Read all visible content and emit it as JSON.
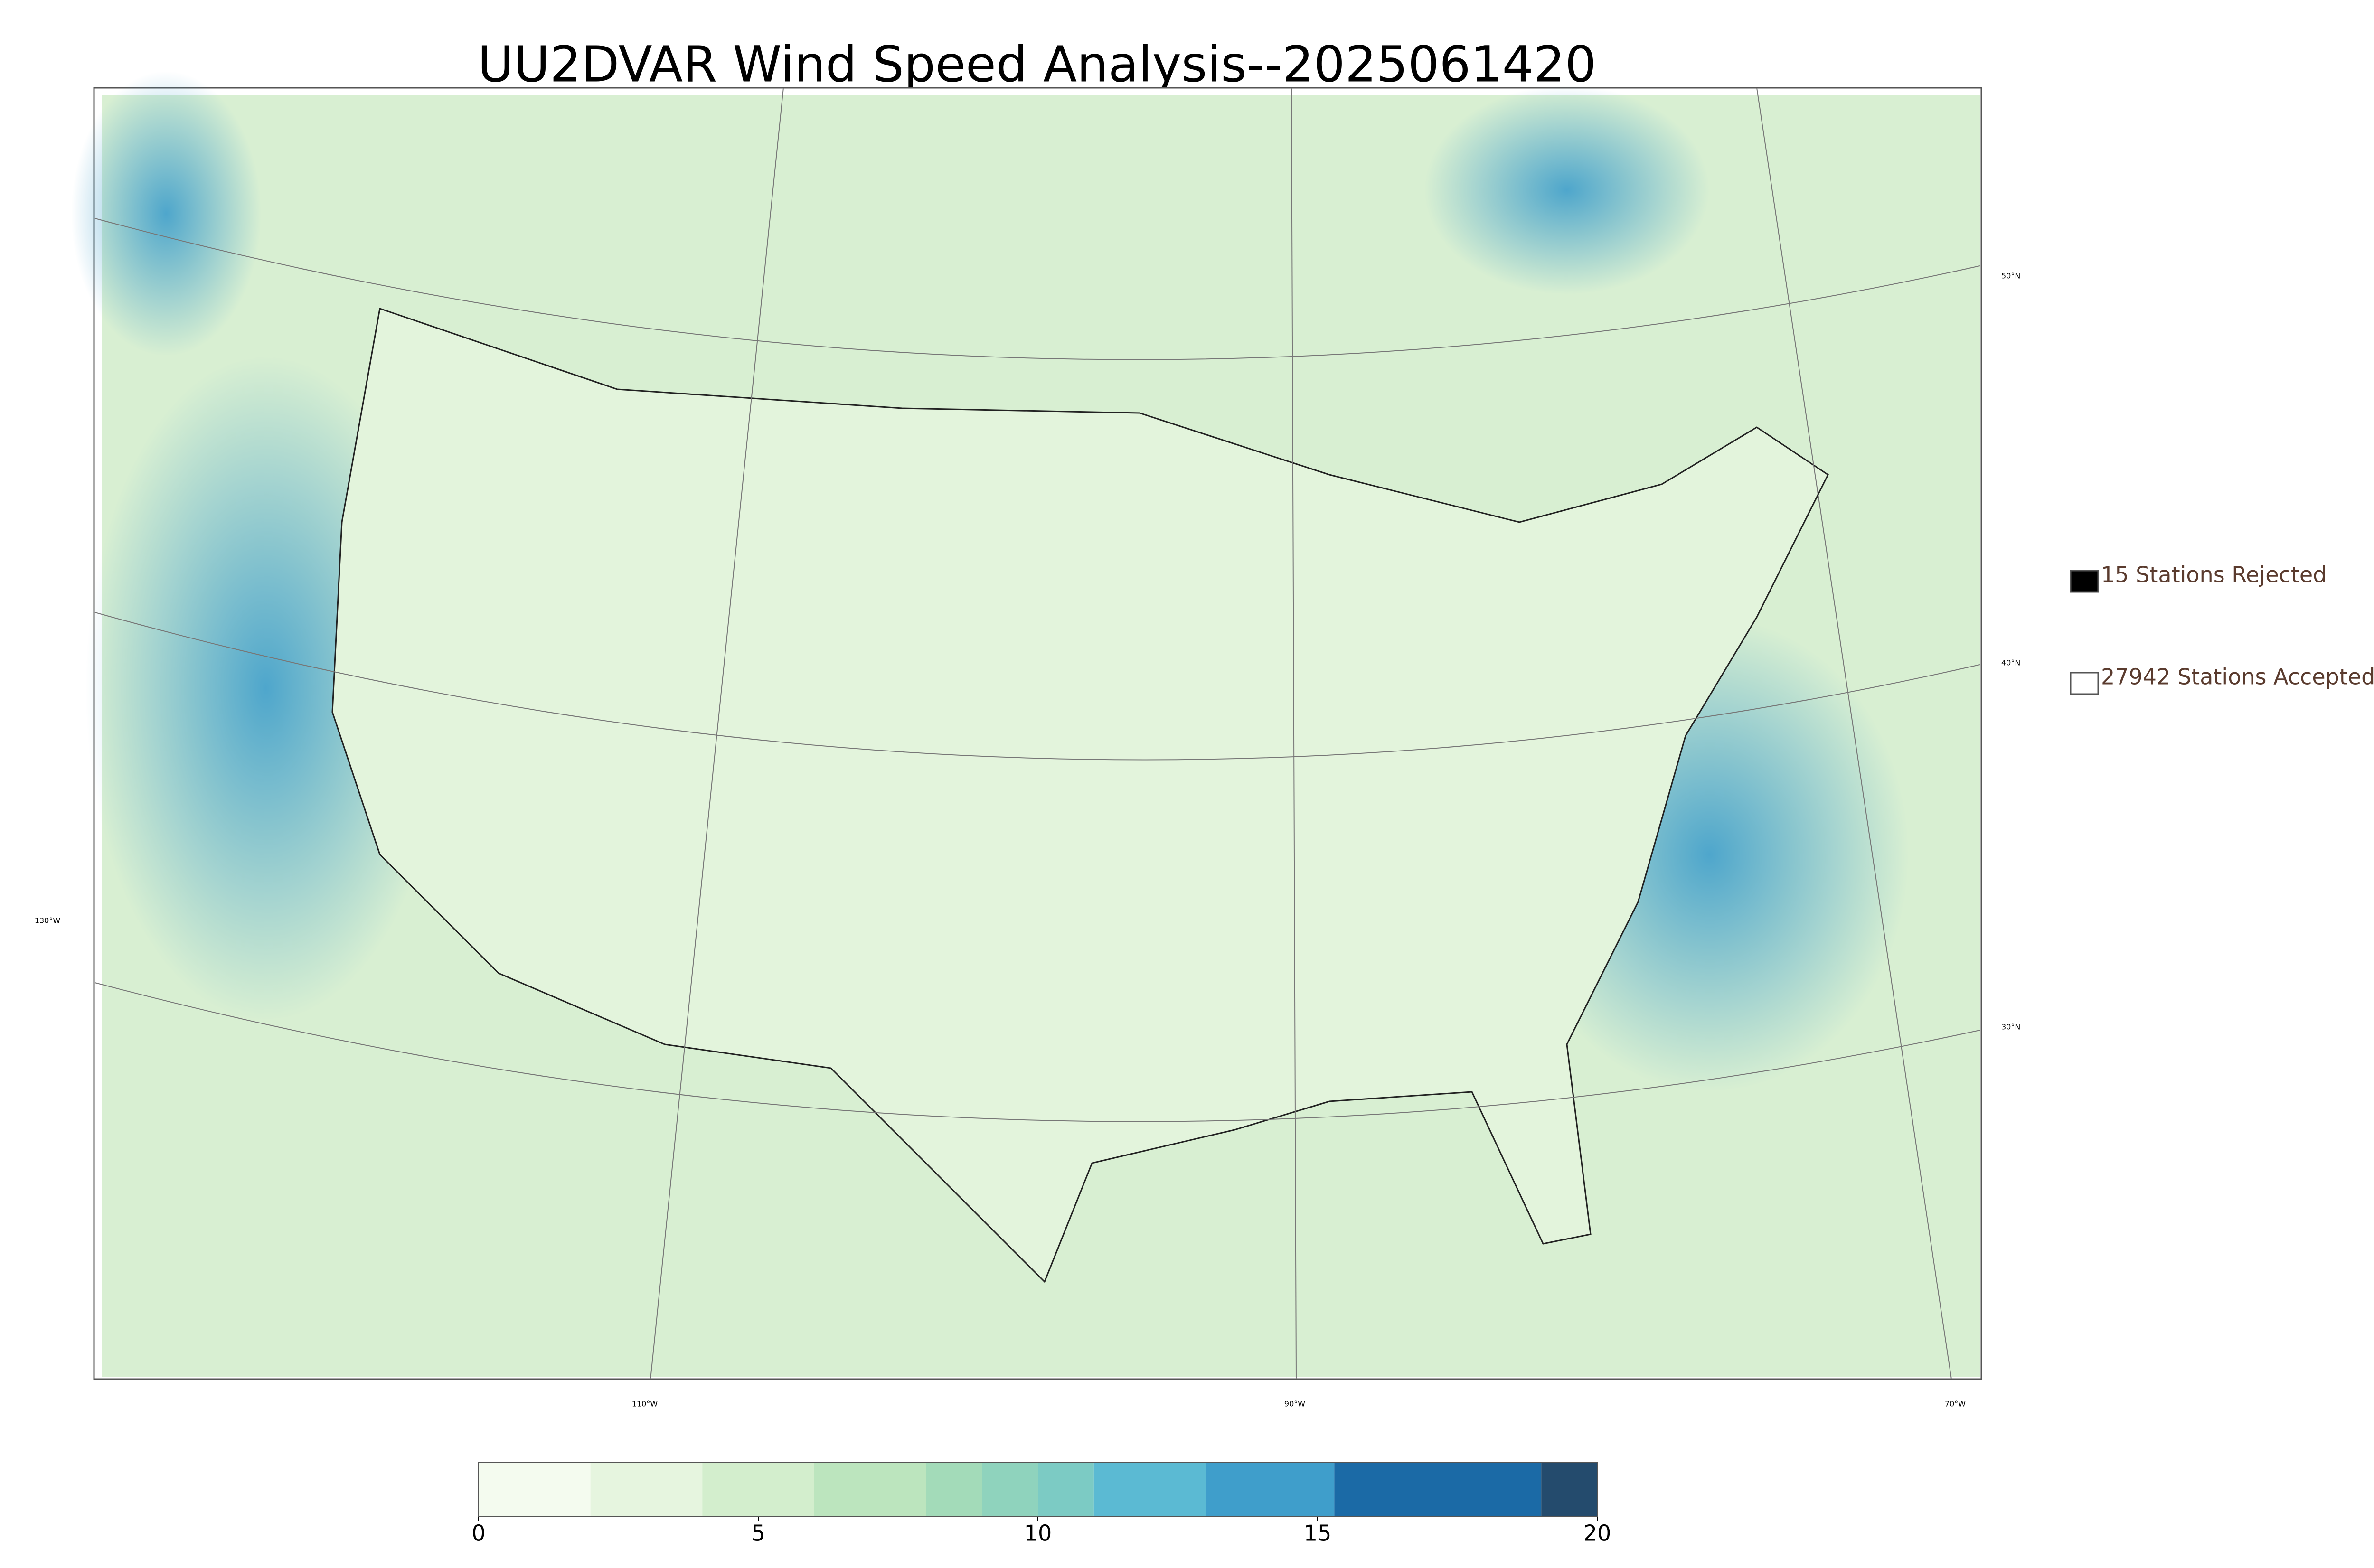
{
  "title": "UU2DVAR Wind Speed Analysis--2025061420",
  "legend": [
    {
      "label": "15 Stations Rejected",
      "color": "#000000"
    },
    {
      "label": "27942 Stations Accepted",
      "color": "#ffffff"
    }
  ],
  "lat_labels": [
    "50°N",
    "40°N",
    "30°N"
  ],
  "lon_labels": [
    "130°W",
    "110°W",
    "90°W",
    "70°W"
  ],
  "colorbar": {
    "lim": [
      0,
      20
    ],
    "ticks": [
      0,
      5,
      10,
      15,
      20
    ],
    "bounds": [
      0,
      2,
      4,
      6,
      8,
      9,
      10,
      11,
      13,
      15.3,
      19,
      20
    ],
    "colors": [
      "#f4fbef",
      "#e6f5df",
      "#d3eecd",
      "#bce5be",
      "#a3dbb9",
      "#8fd3bd",
      "#7ccbc4",
      "#5bbad3",
      "#3f9ecb",
      "#1b6aa6",
      "#244b6d"
    ]
  }
}
